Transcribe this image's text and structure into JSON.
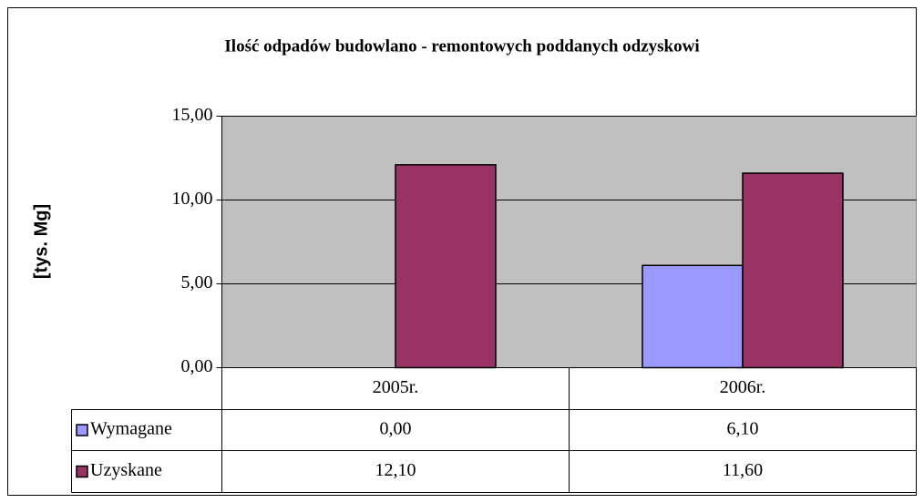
{
  "chart_data": {
    "type": "bar",
    "title": "Ilość odpadów budowlano - remontowych poddanych odzyskowi",
    "y_label": "[tys. Mg]",
    "categories": [
      "2005r.",
      "2006r."
    ],
    "series": [
      {
        "name": "Wymagane",
        "color": "#9999ff",
        "values": [
          0,
          6.1
        ],
        "value_labels": [
          "0,00",
          "6,10"
        ]
      },
      {
        "name": "Uzyskane",
        "color": "#993366",
        "values": [
          12.1,
          11.6
        ],
        "value_labels": [
          "12,10",
          "11,60"
        ]
      }
    ],
    "ylim": [
      0,
      15
    ],
    "yticks": [
      {
        "value": 0,
        "label": "0,00"
      },
      {
        "value": 5,
        "label": "5,00"
      },
      {
        "value": 10,
        "label": "10,00"
      },
      {
        "value": 15,
        "label": "15,00"
      }
    ],
    "grid": true,
    "plot_background": "#c0c0c0",
    "data_table": true
  }
}
